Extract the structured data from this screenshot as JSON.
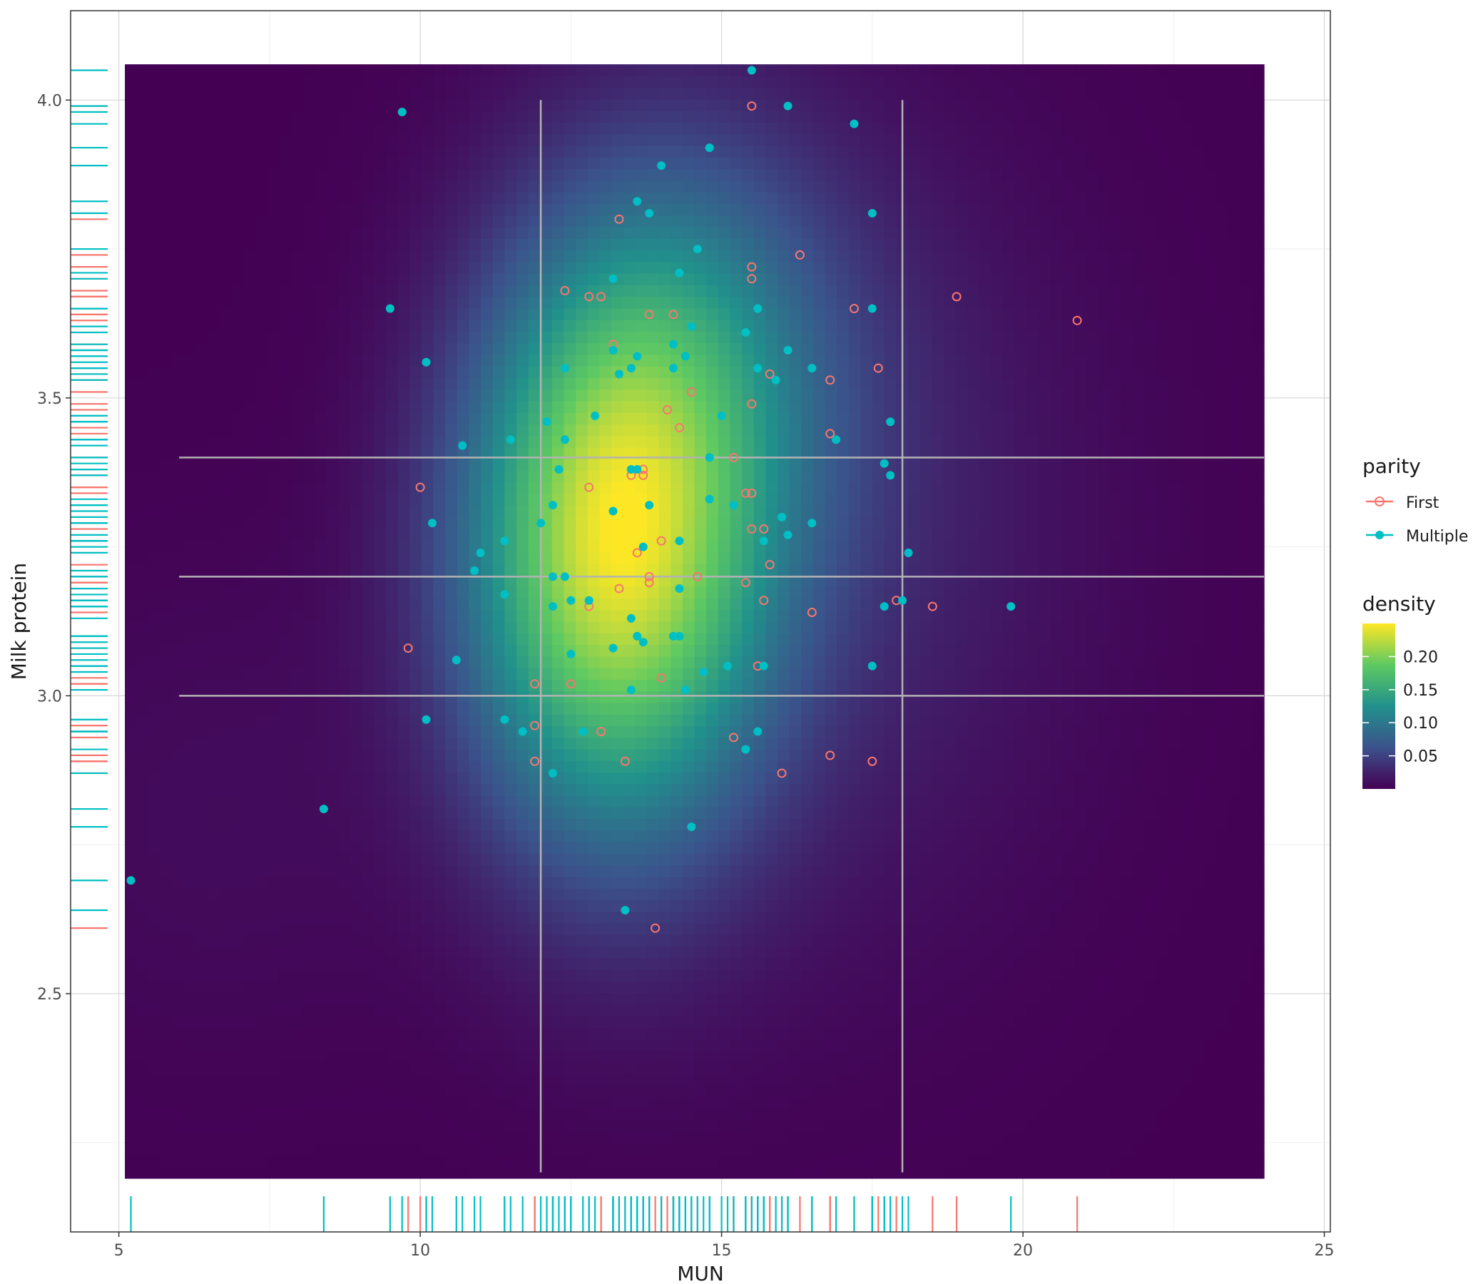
{
  "chart_data": {
    "type": "scatter",
    "xlabel": "MUN",
    "ylabel": "Milk protein",
    "xlim": [
      4.2,
      25.1
    ],
    "ylim": [
      2.1,
      4.15
    ],
    "x_ticks": [
      5,
      10,
      15,
      20,
      25
    ],
    "y_ticks": [
      2.5,
      3.0,
      3.5,
      4.0
    ],
    "grid": true,
    "density_extent": {
      "x": [
        5.1,
        24.0
      ],
      "y": [
        2.19,
        4.06
      ]
    },
    "density_peak": {
      "x": 13.2,
      "y": 3.23
    },
    "reference_lines": {
      "vertical": [
        12,
        18
      ],
      "horizontal": [
        3.0,
        3.2,
        3.4
      ],
      "x_range": [
        6,
        24
      ],
      "y_range": [
        2.2,
        4.0
      ],
      "color": "#b3b3b3"
    },
    "legend": {
      "placement": "right",
      "parity_title": "parity",
      "parity": [
        {
          "name": "First",
          "color": "#F8766D",
          "marker": "open-circle"
        },
        {
          "name": "Multiple",
          "color": "#00BFC4",
          "marker": "filled-circle"
        }
      ],
      "density_title": "density",
      "density_ticks": [
        "0.05",
        "0.10",
        "0.15",
        "0.20"
      ],
      "density_tick_values": [
        0.05,
        0.1,
        0.15,
        0.2
      ],
      "density_range": [
        0.0,
        0.25
      ]
    },
    "colorscale": [
      "#440154",
      "#3b528b",
      "#21918c",
      "#5ec962",
      "#fde725"
    ],
    "series": [
      {
        "name": "First",
        "color": "#F8766D",
        "x": [
          15.5,
          13.3,
          16.3,
          15.5,
          15.5,
          12.4,
          12.8,
          13.0,
          18.9,
          20.9,
          17.2,
          13.8,
          14.2,
          13.2,
          17.6,
          15.8,
          16.8,
          14.5,
          15.5,
          14.1,
          14.3,
          16.8,
          15.2,
          13.7,
          13.5,
          13.7,
          10.0,
          12.8,
          15.4,
          15.5,
          15.5,
          15.7,
          14.0,
          15.8,
          13.6,
          13.8,
          13.8,
          14.6,
          15.4,
          13.3,
          15.7,
          17.9,
          18.5,
          12.8,
          16.5,
          9.8,
          15.6,
          14.0,
          11.9,
          12.5,
          11.9,
          13.0,
          15.2,
          16.8,
          17.5,
          11.9,
          13.4,
          16.0,
          13.9
        ],
        "y": [
          3.99,
          3.8,
          3.74,
          3.72,
          3.7,
          3.68,
          3.67,
          3.67,
          3.67,
          3.63,
          3.65,
          3.64,
          3.64,
          3.59,
          3.55,
          3.54,
          3.53,
          3.51,
          3.49,
          3.48,
          3.45,
          3.44,
          3.4,
          3.38,
          3.37,
          3.37,
          3.35,
          3.35,
          3.34,
          3.34,
          3.28,
          3.28,
          3.26,
          3.22,
          3.24,
          3.2,
          3.19,
          3.2,
          3.19,
          3.18,
          3.16,
          3.16,
          3.15,
          3.15,
          3.14,
          3.08,
          3.05,
          3.03,
          3.02,
          3.02,
          2.95,
          2.94,
          2.93,
          2.9,
          2.89,
          2.89,
          2.89,
          2.87,
          2.61
        ]
      },
      {
        "name": "Multiple",
        "color": "#00BFC4",
        "x": [
          15.5,
          9.7,
          16.1,
          17.2,
          14.8,
          14.0,
          13.6,
          13.8,
          17.5,
          14.6,
          13.2,
          14.3,
          9.5,
          15.6,
          17.5,
          14.5,
          15.4,
          14.2,
          13.2,
          16.1,
          14.4,
          13.6,
          10.1,
          12.4,
          14.2,
          13.5,
          15.6,
          16.5,
          13.3,
          15.9,
          12.9,
          15.0,
          12.1,
          17.8,
          11.5,
          12.4,
          10.7,
          14.8,
          17.7,
          13.5,
          12.3,
          13.6,
          17.8,
          14.8,
          12.2,
          15.2,
          13.8,
          13.2,
          16.0,
          12.0,
          10.2,
          16.5,
          16.1,
          11.4,
          15.7,
          14.3,
          13.7,
          11.0,
          18.1,
          10.9,
          12.2,
          12.4,
          11.4,
          14.3,
          12.5,
          12.8,
          18.0,
          12.2,
          17.7,
          19.8,
          13.5,
          13.6,
          14.2,
          14.3,
          13.7,
          13.2,
          12.5,
          10.6,
          15.1,
          15.7,
          17.5,
          14.7,
          13.5,
          14.4,
          10.1,
          11.4,
          12.7,
          11.7,
          15.6,
          15.4,
          12.2,
          8.4,
          14.5,
          5.2,
          13.4,
          15.6,
          16.9
        ],
        "y": [
          4.05,
          3.98,
          3.99,
          3.96,
          3.92,
          3.89,
          3.83,
          3.81,
          3.81,
          3.75,
          3.7,
          3.71,
          3.65,
          3.65,
          3.65,
          3.62,
          3.61,
          3.59,
          3.58,
          3.58,
          3.57,
          3.57,
          3.56,
          3.55,
          3.55,
          3.55,
          3.55,
          3.55,
          3.54,
          3.53,
          3.47,
          3.47,
          3.46,
          3.46,
          3.43,
          3.43,
          3.42,
          3.4,
          3.39,
          3.38,
          3.38,
          3.38,
          3.37,
          3.33,
          3.32,
          3.32,
          3.32,
          3.31,
          3.3,
          3.29,
          3.29,
          3.29,
          3.27,
          3.26,
          3.26,
          3.26,
          3.25,
          3.24,
          3.24,
          3.21,
          3.2,
          3.2,
          3.17,
          3.18,
          3.16,
          3.16,
          3.16,
          3.15,
          3.15,
          3.15,
          3.13,
          3.1,
          3.1,
          3.1,
          3.09,
          3.08,
          3.07,
          3.06,
          3.05,
          3.05,
          3.05,
          3.04,
          3.01,
          3.01,
          2.96,
          2.96,
          2.94,
          2.94,
          2.94,
          2.91,
          2.87,
          2.81,
          2.78,
          2.69,
          2.64,
          3.65,
          3.43
        ]
      }
    ]
  }
}
